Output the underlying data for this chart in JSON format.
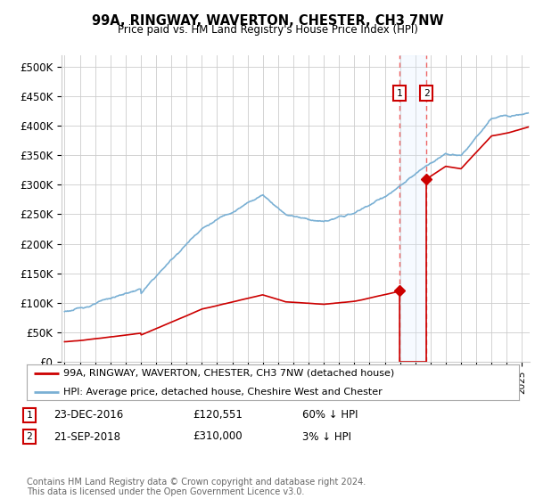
{
  "title": "99A, RINGWAY, WAVERTON, CHESTER, CH3 7NW",
  "subtitle": "Price paid vs. HM Land Registry's House Price Index (HPI)",
  "ylabel_ticks": [
    "£0",
    "£50K",
    "£100K",
    "£150K",
    "£200K",
    "£250K",
    "£300K",
    "£350K",
    "£400K",
    "£450K",
    "£500K"
  ],
  "ytick_values": [
    0,
    50000,
    100000,
    150000,
    200000,
    250000,
    300000,
    350000,
    400000,
    450000,
    500000
  ],
  "ylim": [
    0,
    520000
  ],
  "xlim_start": 1994.8,
  "xlim_end": 2025.5,
  "hpi_color": "#7ab0d4",
  "price_color": "#cc0000",
  "marker1_date": 2016.97,
  "marker1_price": 120551,
  "marker2_date": 2018.72,
  "marker2_price": 310000,
  "legend_label1": "99A, RINGWAY, WAVERTON, CHESTER, CH3 7NW (detached house)",
  "legend_label2": "HPI: Average price, detached house, Cheshire West and Chester",
  "table_row1": [
    "1",
    "23-DEC-2016",
    "£120,551",
    "60% ↓ HPI"
  ],
  "table_row2": [
    "2",
    "21-SEP-2018",
    "£310,000",
    "3% ↓ HPI"
  ],
  "footer": "Contains HM Land Registry data © Crown copyright and database right 2024.\nThis data is licensed under the Open Government Licence v3.0.",
  "background_color": "#ffffff",
  "grid_color": "#cccccc",
  "vline_color": "#ee6666",
  "vshade_color": "#ddeeff"
}
